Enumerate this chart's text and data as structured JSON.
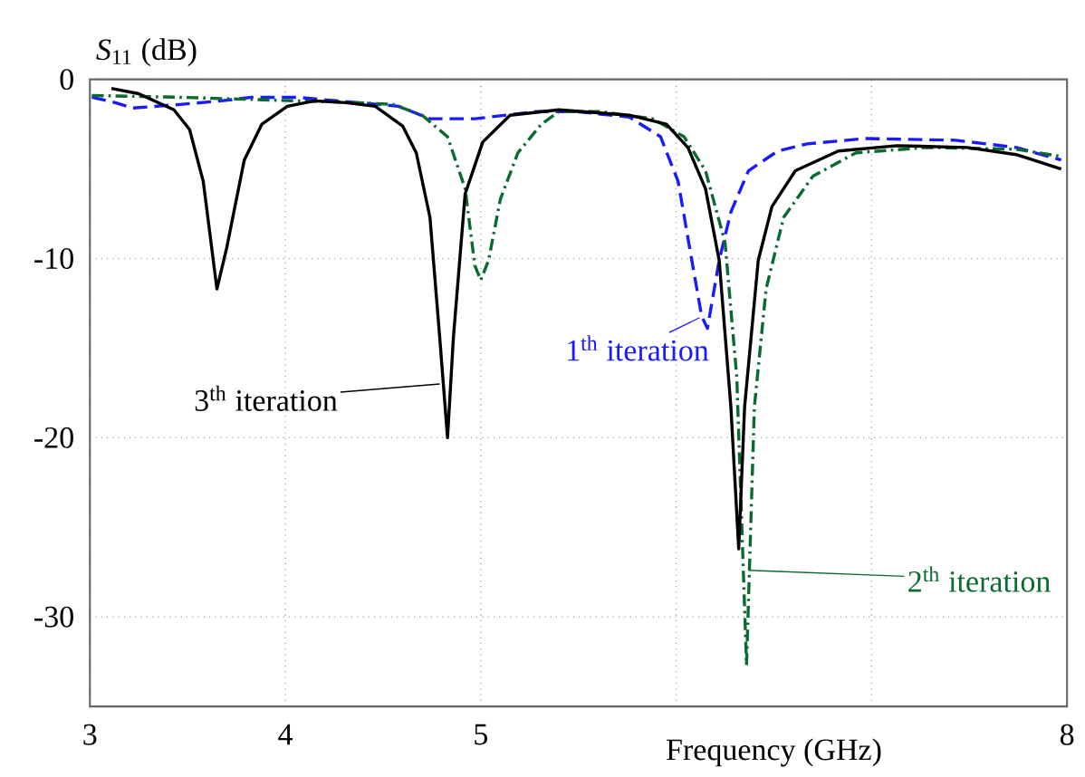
{
  "chart_data": {
    "type": "line",
    "xlabel": "Frequency (GHz)",
    "ylabel": "*S*$_{11}$ (dB)",
    "xlim": [
      3,
      8
    ],
    "ylim": [
      -35,
      0
    ],
    "xticks": [
      3,
      4,
      5,
      {
        "value": 6,
        "label": null
      },
      {
        "value": 7,
        "label": null
      },
      8
    ],
    "yticks": [
      0,
      -10,
      -20,
      -30
    ],
    "grid": true,
    "series": [
      {
        "name": "1$^{th}$ iteration",
        "color": "#1a1aff",
        "line_style": "dashed",
        "x": [
          3.01,
          3.13,
          3.22,
          3.46,
          3.67,
          3.83,
          4.06,
          4.37,
          4.58,
          4.74,
          4.97,
          5.28,
          5.49,
          5.76,
          5.92,
          6.01,
          6.08,
          6.13,
          6.16,
          6.22,
          6.28,
          6.37,
          6.52,
          6.67,
          6.97,
          7.43,
          7.74,
          7.97
        ],
        "values": [
          -1.0,
          -1.3,
          -1.6,
          -1.4,
          -1.2,
          -1.0,
          -1.0,
          -1.3,
          -1.5,
          -2.2,
          -2.2,
          -1.8,
          -1.8,
          -2.1,
          -3.2,
          -5.7,
          -10.1,
          -13.2,
          -13.9,
          -10.1,
          -7.4,
          -5.1,
          -4.0,
          -3.6,
          -3.3,
          -3.4,
          -3.8,
          -4.5
        ]
      },
      {
        "name": "2$^{th}$ iteration",
        "color": "#0b6b2f",
        "line_style": "dashdot",
        "x": [
          3.01,
          3.46,
          3.76,
          4.06,
          4.37,
          4.55,
          4.7,
          4.83,
          4.92,
          4.97,
          5.0,
          5.04,
          5.1,
          5.19,
          5.31,
          5.4,
          5.61,
          5.88,
          6.04,
          6.15,
          6.25,
          6.31,
          6.36,
          6.4,
          6.46,
          6.55,
          6.7,
          6.92,
          7.28,
          7.74,
          7.97
        ],
        "values": [
          -0.9,
          -1.0,
          -1.1,
          -1.2,
          -1.3,
          -1.4,
          -2.0,
          -3.2,
          -6.1,
          -10.4,
          -11.2,
          -10.1,
          -6.7,
          -4.1,
          -2.5,
          -1.8,
          -1.8,
          -2.2,
          -3.2,
          -5.1,
          -9.1,
          -16.6,
          -32.7,
          -18.3,
          -11.7,
          -7.7,
          -5.4,
          -4.1,
          -3.8,
          -3.9,
          -4.3
        ]
      },
      {
        "name": "3$^{th}$ iteration",
        "color": "#000000",
        "line_style": "solid",
        "x": [
          3.11,
          3.25,
          3.43,
          3.51,
          3.58,
          3.65,
          3.7,
          3.79,
          3.88,
          4.01,
          4.15,
          4.31,
          4.46,
          4.6,
          4.67,
          4.74,
          4.79,
          4.83,
          4.86,
          4.92,
          5.01,
          5.15,
          5.4,
          5.76,
          5.95,
          6.06,
          6.15,
          6.22,
          6.28,
          6.32,
          6.35,
          6.42,
          6.49,
          6.61,
          6.83,
          7.13,
          7.49,
          7.74,
          7.97
        ],
        "values": [
          -0.5,
          -0.8,
          -1.7,
          -2.8,
          -5.7,
          -11.7,
          -9.4,
          -4.5,
          -2.5,
          -1.5,
          -1.2,
          -1.3,
          -1.5,
          -2.6,
          -4.1,
          -7.7,
          -14.4,
          -20.0,
          -14.4,
          -6.4,
          -3.5,
          -2.0,
          -1.7,
          -2.0,
          -2.5,
          -3.8,
          -6.1,
          -10.1,
          -18.3,
          -26.2,
          -18.3,
          -10.1,
          -7.1,
          -5.1,
          -4.0,
          -3.7,
          -3.8,
          -4.2,
          -5.0
        ]
      }
    ]
  }
}
